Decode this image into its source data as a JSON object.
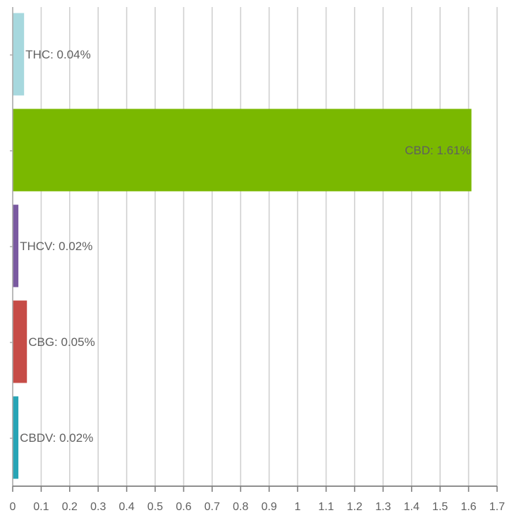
{
  "chart_data": {
    "type": "bar",
    "orientation": "horizontal",
    "categories": [
      "THC",
      "CBD",
      "THCV",
      "CBG",
      "CBDV"
    ],
    "values": [
      0.04,
      1.61,
      0.02,
      0.05,
      0.02
    ],
    "data_labels": [
      "THC: 0.04%",
      "CBD: 1.61%",
      "THCV: 0.02%",
      "CBG: 0.05%",
      "CBDV: 0.02%"
    ],
    "colors": [
      "#a7d8de",
      "#7ab800",
      "#7a5aa0",
      "#c64c47",
      "#27a4b5"
    ],
    "xlim": [
      0,
      1.7
    ],
    "xticks": [
      0,
      0.1,
      0.2,
      0.3,
      0.4,
      0.5,
      0.6,
      0.7,
      0.8,
      0.9,
      1,
      1.1,
      1.2,
      1.3,
      1.4,
      1.5,
      1.6,
      1.7
    ],
    "xtick_labels": [
      "0",
      "0.1",
      "0.2",
      "0.3",
      "0.4",
      "0.5",
      "0.6",
      "0.7",
      "0.8",
      "0.9",
      "1",
      "1.1",
      "1.2",
      "1.3",
      "1.4",
      "1.5",
      "1.6",
      "1.7"
    ],
    "grid": true,
    "legend": false,
    "title": "",
    "xlabel": "",
    "ylabel": ""
  }
}
